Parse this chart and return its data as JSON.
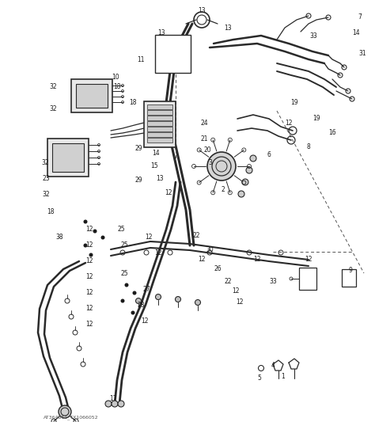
{
  "bg_color": "#ffffff",
  "line_color": "#2a2a2a",
  "label_color": "#1a1a1a",
  "dashed_color": "#555555",
  "title": "",
  "watermark": "AT364811_TX1066052",
  "fig_width": 4.74,
  "fig_height": 5.33,
  "dpi": 100
}
